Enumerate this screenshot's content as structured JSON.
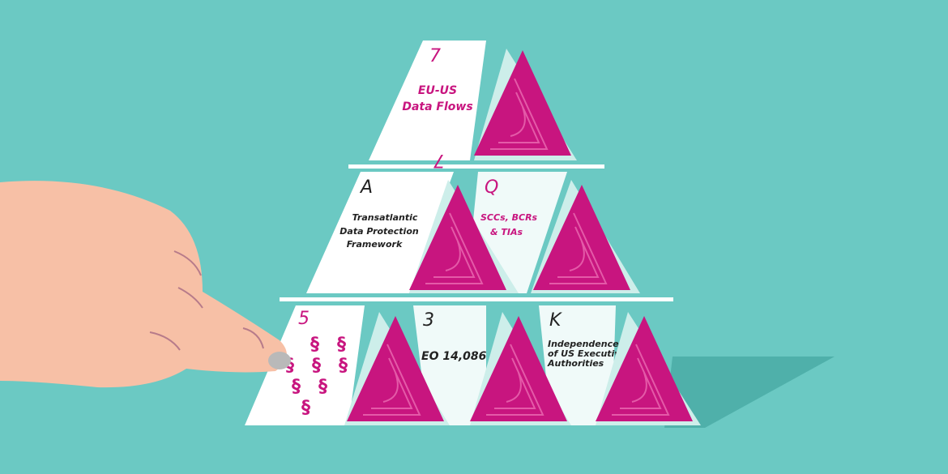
{
  "scene": {
    "colors": {
      "background": "#6bc9c3",
      "card_face": "#ffffff",
      "card_back": "#c8157f",
      "card_edge": "#cdeeea",
      "accent_text": "#c8157f",
      "dark_text": "#222222",
      "skin": "#f7c0a6",
      "shadow": "#4fb0aa"
    },
    "cards": [
      {
        "rank": "7",
        "label_lines": [
          "EU-US",
          "Data Flows"
        ]
      },
      {
        "rank": "A",
        "label_lines": [
          "Transatlantic",
          "Data Protection",
          "Framework"
        ]
      },
      {
        "rank": "Q",
        "label_lines": [
          "SCCs, BCRs",
          "& TIAs"
        ]
      },
      {
        "rank": "5",
        "symbol": "§"
      },
      {
        "rank": "3",
        "label_lines": [
          "EO 14,086"
        ]
      },
      {
        "rank": "K",
        "label_lines": [
          "Independence",
          "of US Executive",
          "Authorities"
        ]
      }
    ]
  }
}
